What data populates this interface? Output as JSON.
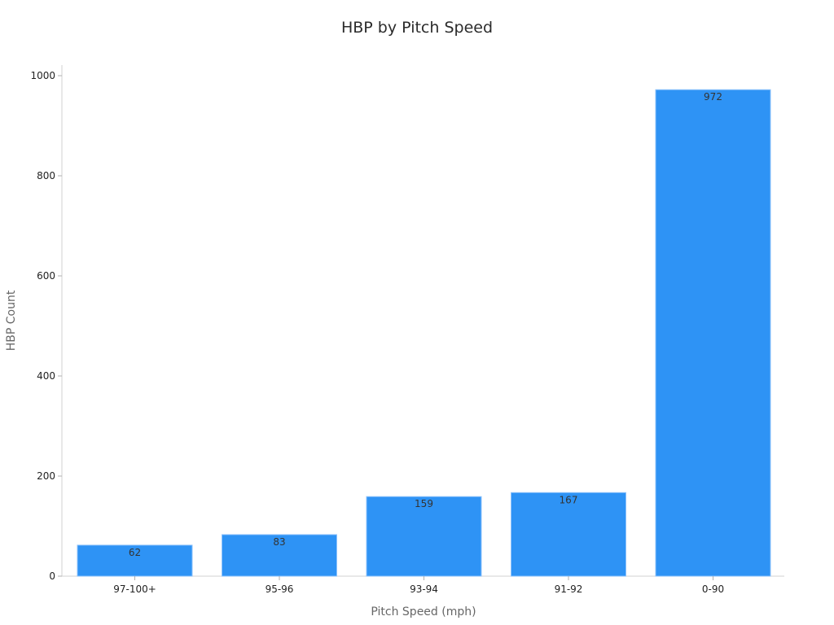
{
  "chart_data": {
    "type": "bar",
    "title": "HBP by Pitch Speed",
    "xlabel": "Pitch Speed (mph)",
    "ylabel": "HBP Count",
    "categories": [
      "97-100+",
      "95-96",
      "93-94",
      "91-92",
      "0-90"
    ],
    "values": [
      62,
      83,
      159,
      167,
      972
    ],
    "data_labels": [
      "62",
      "83",
      "159",
      "167",
      "972"
    ],
    "ylim": [
      0,
      1020
    ],
    "yticks": [
      0,
      200,
      400,
      600,
      800,
      1000
    ],
    "grid": false,
    "legend": "none",
    "bar_color": "#2e93f5",
    "bar_edge_color": "#8fc3fb"
  }
}
